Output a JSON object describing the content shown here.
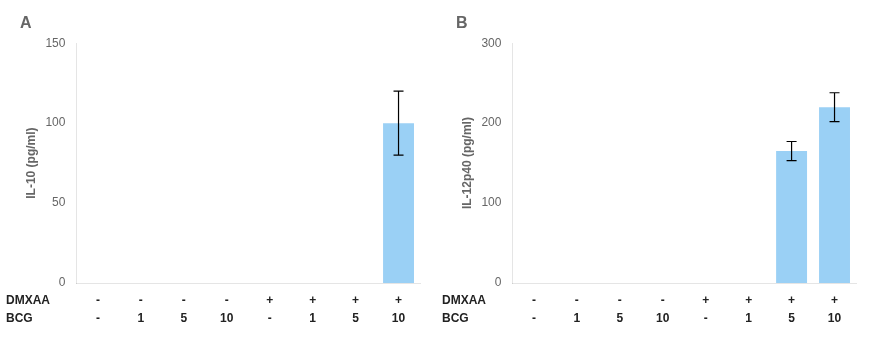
{
  "chart_data": [
    {
      "type": "bar",
      "title": "A",
      "ylabel": "IL-10 (pg/ml)",
      "category_rows": [
        "DMXAA",
        "BCG"
      ],
      "categories": [
        [
          "-",
          "-"
        ],
        [
          "-",
          "1"
        ],
        [
          "-",
          "5"
        ],
        [
          "-",
          "10"
        ],
        [
          "+",
          "-"
        ],
        [
          "+",
          "1"
        ],
        [
          "+",
          "5"
        ],
        [
          "+",
          "10"
        ]
      ],
      "values": [
        0,
        0,
        0,
        0,
        0,
        0,
        0,
        100
      ],
      "errors": [
        0,
        0,
        0,
        0,
        0,
        0,
        0,
        20
      ],
      "ylim": [
        0,
        150
      ],
      "yticks": [
        0,
        50,
        100,
        150
      ],
      "grid": false
    },
    {
      "type": "bar",
      "title": "B",
      "ylabel": "IL-12p40 (pg/ml)",
      "category_rows": [
        "DMXAA",
        "BCG"
      ],
      "categories": [
        [
          "-",
          "-"
        ],
        [
          "-",
          "1"
        ],
        [
          "-",
          "5"
        ],
        [
          "-",
          "10"
        ],
        [
          "+",
          "-"
        ],
        [
          "+",
          "1"
        ],
        [
          "+",
          "5"
        ],
        [
          "+",
          "10"
        ]
      ],
      "values": [
        0,
        0,
        0,
        0,
        0,
        0,
        165,
        220
      ],
      "errors": [
        0,
        0,
        0,
        0,
        0,
        0,
        12,
        18
      ],
      "ylim": [
        0,
        300
      ],
      "yticks": [
        0,
        100,
        200,
        300
      ],
      "grid": false
    }
  ]
}
